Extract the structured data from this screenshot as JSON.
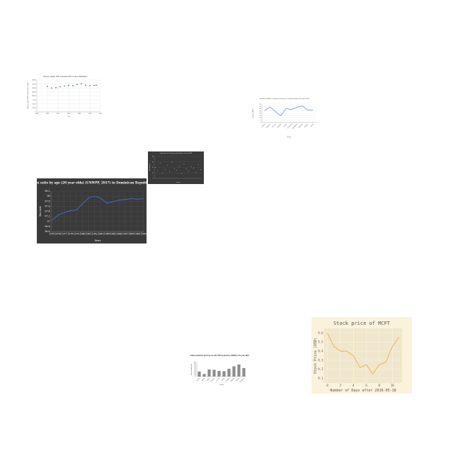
{
  "chart_data": [
    {
      "type": "scatter",
      "title": "GNI per capita, PPP (constant 2017 int $) in Barbados",
      "xlabel": "Year",
      "ylabel": "GNI per capita, PPP (constant 2017 int $)",
      "x": [
        1990,
        1992,
        1994,
        1996,
        1998,
        2000,
        2002,
        2004,
        2006,
        2008,
        2010,
        2012,
        2013
      ],
      "y": [
        16000,
        15000,
        15200,
        15800,
        16200,
        16600,
        16400,
        17200,
        17600,
        16800,
        16500,
        16600,
        16700
      ],
      "xlim": [
        1985,
        2015
      ],
      "ylim": [
        0,
        20000
      ],
      "xticks": [
        "1985",
        "1990",
        "1995",
        "2000",
        "2005",
        "2010",
        "2015"
      ],
      "yticks": [
        "0",
        "2500",
        "5000",
        "7500",
        "10000",
        "12500",
        "15000",
        "17500",
        "20000"
      ],
      "colors": {
        "point": "#2e5e4a"
      },
      "grid": true
    },
    {
      "type": "line",
      "title": "Number of ATMs, commercial banks per 100,000 adults in the year 2014",
      "xlabel": "Country",
      "ylabel": "Number of ATMs",
      "categories": [
        "Albania",
        "Argentina",
        "Armenia",
        "Australia",
        "Austria",
        "Azerbaijan",
        "Bangladesh",
        "Barbados",
        "Belgium",
        "Benin"
      ],
      "values": [
        32,
        42,
        30,
        18,
        38,
        35,
        41,
        45,
        34,
        33
      ],
      "ylim": [
        0,
        50
      ],
      "colors": {
        "line": "#4a76c4"
      },
      "grid": true
    },
    {
      "type": "scatter",
      "title": "Labor taxes (% of commercial profits) in the year 2008",
      "xlabel": "Country",
      "ylabel": "Labor taxes (%)",
      "x": [
        1,
        2,
        3,
        4,
        5,
        6,
        7,
        8,
        9,
        10,
        11,
        12,
        13,
        14,
        15,
        16,
        17,
        18,
        19,
        20
      ],
      "y": [
        20,
        14,
        28,
        10,
        16,
        24,
        12,
        30,
        18,
        15,
        22,
        9,
        26,
        17,
        13,
        21,
        19,
        11,
        25,
        16
      ],
      "ylim": [
        0,
        40
      ],
      "colors": {
        "point": "#c0c0c0"
      },
      "grid": true
    },
    {
      "type": "line",
      "title": "Sex ratio by age (20 year olds) (UNWPP, 2017) in Dominican Republic",
      "xlabel": "Years",
      "ylabel": "Sex ratio",
      "x": [
        1975,
        1976,
        1977,
        1978,
        1979,
        1980,
        1981,
        1982,
        1983,
        1984,
        1985,
        1986,
        1987,
        1988,
        1989,
        1990
      ],
      "y": [
        97.05,
        97.25,
        97.35,
        97.42,
        97.45,
        97.7,
        97.93,
        98.0,
        97.92,
        97.72,
        97.78,
        97.84,
        97.87,
        97.9,
        97.88,
        97.9
      ],
      "xticks": [
        "1975",
        "1976",
        "1977",
        "1978",
        "1979",
        "1980",
        "1981",
        "1982",
        "1983",
        "1984",
        "1985",
        "1986",
        "1987",
        "1988",
        "1989",
        "1990"
      ],
      "yticks": [
        "96.6",
        "96.8",
        "97",
        "97.2",
        "97.4",
        "97.6",
        "97.8",
        "98",
        "98.2"
      ],
      "ylim": [
        96.6,
        98.2
      ],
      "colors": {
        "line": "#3a6fd8",
        "background": "#3a3a3a",
        "text": "#ffffff"
      },
      "grid": true
    },
    {
      "type": "bar",
      "title": "Urban population (%) long-run with 2050 projections (OWID) in the year 1984",
      "xlabel": "Country",
      "ylabel": "Urban population (%)",
      "categories": [
        "Albania",
        "Algeria",
        "Angola",
        "Argentina",
        "Armenia",
        "Austria",
        "Azerbaijan",
        "Bahamas",
        "Bahrain",
        "Bangladesh"
      ],
      "values": [
        35,
        18,
        50,
        48,
        40,
        38,
        55,
        72,
        85,
        60
      ],
      "ylim": [
        0,
        100
      ],
      "colors": {
        "bar": "#8c8c8c"
      },
      "grid": false
    },
    {
      "type": "line",
      "title": "Stock price of MCFT",
      "xlabel": "Number of Days after 2016-05-18",
      "ylabel": "Stock Price (USD)",
      "x": [
        0,
        1,
        2,
        3,
        4,
        5,
        6,
        7,
        8,
        9,
        10,
        11
      ],
      "y": [
        9.6,
        9.45,
        9.4,
        9.4,
        9.35,
        9.22,
        9.25,
        9.15,
        9.25,
        9.28,
        9.45,
        9.55
      ],
      "xticks": [
        "0",
        "2",
        "4",
        "6",
        "8",
        "10"
      ],
      "yticks": [
        "9.1",
        "9.2",
        "9.3",
        "9.4",
        "9.5",
        "9.6"
      ],
      "xlim": [
        -0.5,
        11.5
      ],
      "ylim": [
        9.05,
        9.65
      ],
      "colors": {
        "line": "#e8b84a",
        "background": "#f0e6cc",
        "outer": "#fbf2dc"
      },
      "grid": true
    }
  ]
}
